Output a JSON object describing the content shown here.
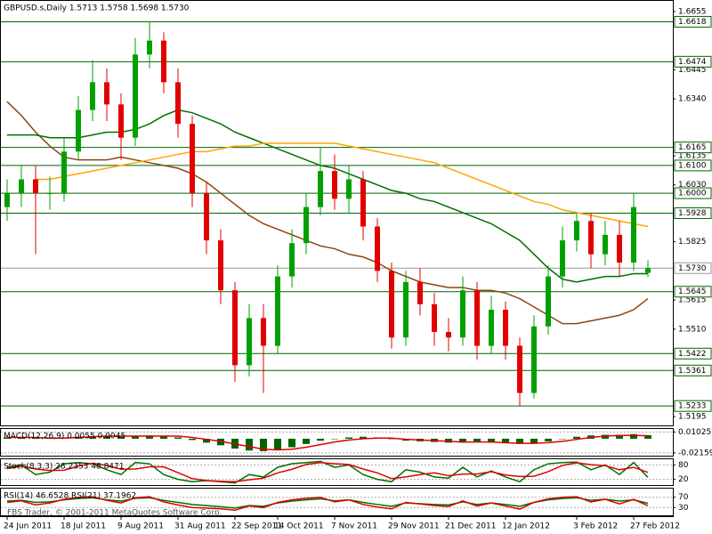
{
  "chart_data": [
    {
      "type": "candlestick",
      "title": "GBPUSD.s,Daily  1.5713 1.5758 1.5698 1.5730",
      "categories": [
        "24 Jun 2011",
        null,
        null,
        null,
        "18 Jul 2011",
        null,
        null,
        null,
        "9 Aug 2011",
        null,
        null,
        null,
        "31 Aug 2011",
        null,
        null,
        null,
        "22 Sep 2011",
        null,
        null,
        "14 Oct 2011",
        null,
        null,
        null,
        "7 Nov 2011",
        null,
        null,
        null,
        "29 Nov 2011",
        null,
        null,
        null,
        "21 Dec 2011",
        null,
        null,
        null,
        "12 Jan 2012",
        null,
        null,
        null,
        null,
        "3 Feb 2012",
        null,
        null,
        null,
        "27 Feb 2012",
        null
      ],
      "open": [
        1.595,
        1.6,
        1.605,
        1.6,
        1.6,
        1.615,
        1.63,
        1.64,
        1.632,
        1.62,
        1.65,
        1.655,
        1.64,
        1.625,
        1.6,
        1.583,
        1.565,
        1.538,
        1.555,
        1.545,
        1.57,
        1.582,
        1.595,
        1.608,
        1.598,
        1.605,
        1.588,
        1.572,
        1.548,
        1.568,
        1.56,
        1.55,
        1.548,
        1.565,
        1.545,
        1.558,
        1.545,
        1.528,
        1.552,
        1.57,
        1.583,
        1.59,
        1.578,
        1.585,
        1.575,
        1.5713
      ],
      "high": [
        1.605,
        1.61,
        1.61,
        1.606,
        1.62,
        1.635,
        1.648,
        1.645,
        1.636,
        1.656,
        1.6618,
        1.658,
        1.645,
        1.628,
        1.604,
        1.587,
        1.568,
        1.56,
        1.56,
        1.574,
        1.587,
        1.6,
        1.6165,
        1.614,
        1.61,
        1.608,
        1.591,
        1.575,
        1.572,
        1.573,
        1.564,
        1.555,
        1.57,
        1.568,
        1.563,
        1.561,
        1.548,
        1.556,
        1.574,
        1.588,
        1.5928,
        1.593,
        1.59,
        1.59,
        1.6,
        1.5758
      ],
      "low": [
        1.59,
        1.595,
        1.578,
        1.594,
        1.597,
        1.612,
        1.626,
        1.626,
        1.612,
        1.617,
        1.645,
        1.636,
        1.62,
        1.595,
        1.578,
        1.56,
        1.532,
        1.534,
        1.528,
        1.542,
        1.566,
        1.578,
        1.592,
        1.594,
        1.593,
        1.583,
        1.568,
        1.544,
        1.545,
        1.556,
        1.545,
        1.543,
        1.545,
        1.54,
        1.542,
        1.54,
        1.5233,
        1.526,
        1.549,
        1.566,
        1.579,
        1.573,
        1.574,
        1.57,
        1.572,
        1.5698
      ],
      "close": [
        1.6,
        1.605,
        1.6,
        1.6,
        1.615,
        1.63,
        1.64,
        1.632,
        1.62,
        1.65,
        1.655,
        1.64,
        1.625,
        1.6,
        1.583,
        1.565,
        1.538,
        1.555,
        1.545,
        1.57,
        1.582,
        1.595,
        1.608,
        1.598,
        1.605,
        1.588,
        1.572,
        1.548,
        1.568,
        1.56,
        1.55,
        1.548,
        1.565,
        1.545,
        1.558,
        1.545,
        1.528,
        1.552,
        1.57,
        1.583,
        1.59,
        1.578,
        1.585,
        1.575,
        1.595,
        1.573
      ],
      "up_color": "#00a000",
      "down_color": "#e00000",
      "series": [
        {
          "color": "#8b4513",
          "values": [
            1.633,
            1.628,
            1.622,
            1.617,
            1.613,
            1.612,
            1.612,
            1.612,
            1.613,
            1.612,
            1.611,
            1.61,
            1.609,
            1.607,
            1.604,
            1.6,
            1.596,
            1.592,
            1.589,
            1.587,
            1.585,
            1.583,
            1.581,
            1.58,
            1.578,
            1.577,
            1.575,
            1.572,
            1.57,
            1.568,
            1.567,
            1.566,
            1.566,
            1.565,
            1.565,
            1.564,
            1.562,
            1.559,
            1.556,
            1.553,
            1.553,
            1.554,
            1.555,
            1.556,
            1.558,
            1.562
          ]
        },
        {
          "color": "#007000",
          "values": [
            1.621,
            1.621,
            1.621,
            1.62,
            1.62,
            1.62,
            1.621,
            1.622,
            1.622,
            1.623,
            1.625,
            1.628,
            1.63,
            1.629,
            1.627,
            1.625,
            1.622,
            1.62,
            1.618,
            1.616,
            1.614,
            1.612,
            1.61,
            1.609,
            1.607,
            1.605,
            1.603,
            1.601,
            1.6,
            1.598,
            1.597,
            1.595,
            1.593,
            1.591,
            1.589,
            1.586,
            1.583,
            1.578,
            1.573,
            1.569,
            1.568,
            1.569,
            1.57,
            1.57,
            1.571,
            1.571
          ]
        },
        {
          "color": "#ffa500",
          "values": [
            null,
            null,
            1.605,
            1.605,
            1.606,
            1.607,
            1.608,
            1.609,
            1.61,
            1.611,
            1.612,
            1.613,
            1.614,
            1.615,
            1.615,
            1.616,
            1.617,
            1.617,
            1.618,
            1.618,
            1.618,
            1.618,
            1.618,
            1.618,
            1.617,
            1.616,
            1.615,
            1.614,
            1.613,
            1.612,
            1.611,
            1.609,
            1.607,
            1.605,
            1.603,
            1.601,
            1.599,
            1.597,
            1.596,
            1.594,
            1.593,
            1.592,
            1.591,
            1.59,
            1.589,
            1.588
          ]
        }
      ],
      "levels": [
        1.6618,
        1.6474,
        1.6165,
        {
          "value": 1.61,
          "label": "1.6100"
        },
        {
          "value": 1.6,
          "label": "1.6000"
        },
        1.5928,
        1.5645,
        1.5422,
        1.5361,
        1.5233
      ],
      "level_color": "#006400",
      "current": {
        "value": 1.573,
        "label": "1.5730"
      },
      "ylim": [
        1.5163,
        1.669
      ],
      "yticks": [
        1.6655,
        1.6445,
        {
          "value": 1.634,
          "label": "1.6340"
        },
        1.6135,
        {
          "value": 1.603,
          "label": "1.6030"
        },
        1.5825,
        1.5615,
        {
          "value": 1.551,
          "label": "1.5510"
        },
        1.5195
      ]
    },
    {
      "type": "macd",
      "title": "MACD(12,26,9) 0.0055 0.0045",
      "values": [
        0.002,
        0.002,
        0.001,
        0.001,
        0.002,
        0.003,
        0.004,
        0.004,
        0.003,
        0.004,
        0.005,
        0.004,
        0.002,
        -0.002,
        -0.006,
        -0.01,
        -0.015,
        -0.018,
        -0.019,
        -0.017,
        -0.013,
        -0.008,
        -0.003,
        0.0,
        0.002,
        0.003,
        0.002,
        0.0,
        -0.003,
        -0.004,
        -0.005,
        -0.006,
        -0.006,
        -0.005,
        -0.006,
        -0.007,
        -0.008,
        -0.007,
        -0.004,
        0.0,
        0.003,
        0.005,
        0.006,
        0.006,
        0.007,
        0.0055
      ],
      "color": "#006400",
      "series": [
        {
          "color": "#e00000",
          "values": [
            0.002,
            0.002,
            0.002,
            0.001,
            0.001,
            0.002,
            0.003,
            0.004,
            0.004,
            0.004,
            0.004,
            0.004,
            0.004,
            0.002,
            -0.001,
            -0.004,
            -0.008,
            -0.012,
            -0.016,
            -0.017,
            -0.016,
            -0.013,
            -0.009,
            -0.005,
            -0.002,
            0.0,
            0.001,
            0.001,
            -0.001,
            -0.002,
            -0.003,
            -0.004,
            -0.005,
            -0.005,
            -0.005,
            -0.006,
            -0.007,
            -0.007,
            -0.006,
            -0.004,
            -0.001,
            0.002,
            0.004,
            0.005,
            0.005,
            0.0045
          ]
        }
      ],
      "ylim": [
        -0.0245,
        0.0135
      ],
      "yticks": [
        0.01025,
        -0.02159
      ]
    },
    {
      "type": "line",
      "title": "Stoch(8,3,3) 28.2353 48.8471",
      "series": [
        {
          "color": "#007000",
          "values": [
            70,
            80,
            40,
            50,
            85,
            90,
            85,
            60,
            40,
            90,
            85,
            40,
            20,
            10,
            15,
            10,
            5,
            40,
            30,
            70,
            85,
            90,
            95,
            70,
            80,
            40,
            20,
            10,
            60,
            50,
            30,
            25,
            70,
            30,
            55,
            30,
            10,
            60,
            85,
            90,
            92,
            60,
            80,
            40,
            90,
            28.2353
          ]
        },
        {
          "color": "#e00000",
          "values": [
            65,
            75,
            63,
            57,
            58,
            75,
            87,
            78,
            62,
            63,
            72,
            72,
            48,
            23,
            15,
            12,
            10,
            18,
            25,
            47,
            62,
            82,
            90,
            85,
            82,
            63,
            47,
            23,
            30,
            40,
            47,
            35,
            42,
            42,
            52,
            38,
            32,
            33,
            52,
            78,
            89,
            81,
            77,
            60,
            70,
            48.8471
          ]
        }
      ],
      "ylim": [
        0,
        100
      ],
      "yticks": [
        80,
        20
      ]
    },
    {
      "type": "line",
      "title": "RSI(14) 46.6528 RSI(21) 37.1962",
      "series": [
        {
          "color": "#007000",
          "values": [
            55,
            58,
            50,
            52,
            60,
            65,
            68,
            60,
            55,
            66,
            68,
            58,
            50,
            42,
            38,
            33,
            28,
            38,
            35,
            48,
            55,
            60,
            64,
            56,
            60,
            50,
            42,
            35,
            48,
            45,
            42,
            40,
            52,
            42,
            48,
            42,
            35,
            50,
            60,
            65,
            68,
            58,
            62,
            55,
            60,
            46.6528
          ]
        },
        {
          "color": "#e00000",
          "values": [
            50,
            56,
            40,
            48,
            62,
            70,
            72,
            58,
            48,
            68,
            72,
            52,
            40,
            30,
            28,
            25,
            20,
            36,
            30,
            50,
            60,
            66,
            70,
            52,
            60,
            42,
            32,
            25,
            50,
            44,
            38,
            34,
            56,
            36,
            48,
            36,
            24,
            50,
            64,
            70,
            72,
            52,
            62,
            44,
            62,
            37.1962
          ]
        }
      ],
      "ylim": [
        0,
        100
      ],
      "yticks": [
        70,
        30
      ]
    }
  ],
  "watermark": "FBS Trader, © 2001-2011 MetaQuotes Software Corp."
}
